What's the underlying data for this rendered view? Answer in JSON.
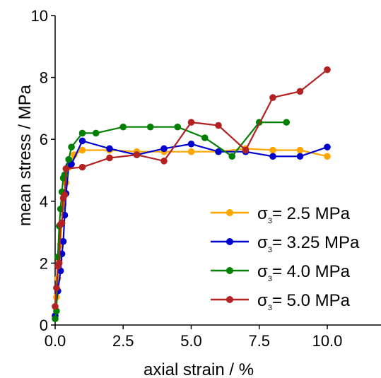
{
  "chart_data": {
    "type": "line",
    "xlabel": "axial strain / %",
    "ylabel": "mean stress / MPa",
    "xlim": [
      0,
      12
    ],
    "ylim": [
      0,
      10
    ],
    "xticks": [
      {
        "value": 0,
        "label": "0.0"
      },
      {
        "value": 2.5,
        "label": "2.5"
      },
      {
        "value": 5,
        "label": "5.0"
      },
      {
        "value": 7.5,
        "label": "7.5"
      },
      {
        "value": 10,
        "label": "10.0"
      }
    ],
    "yticks": [
      {
        "value": 0,
        "label": "0"
      },
      {
        "value": 2,
        "label": "2"
      },
      {
        "value": 4,
        "label": "4"
      },
      {
        "value": 6,
        "label": "6"
      },
      {
        "value": 8,
        "label": "8"
      },
      {
        "value": 10,
        "label": "10"
      }
    ],
    "grid": false,
    "legend_position": "bottom-right",
    "series": [
      {
        "name_main": "σ",
        "name_sub": "3",
        "name_rest": "= 2.5 MPa",
        "color": "#FFA500",
        "x": [
          0.0,
          0.05,
          0.1,
          0.15,
          0.2,
          0.25,
          0.3,
          0.4,
          0.5,
          0.7,
          1.0,
          2.0,
          3.0,
          4.0,
          5.0,
          6.0,
          7.0,
          8.0,
          9.0,
          10.0
        ],
        "y": [
          0.3,
          0.9,
          1.5,
          2.1,
          2.6,
          3.3,
          3.9,
          4.6,
          5.1,
          5.5,
          5.65,
          5.65,
          5.6,
          5.6,
          5.6,
          5.6,
          5.7,
          5.65,
          5.65,
          5.45
        ]
      },
      {
        "name_main": "σ",
        "name_sub": "3",
        "name_rest": "= 3.25 MPa",
        "color": "#0000CD",
        "x": [
          0.0,
          0.1,
          0.2,
          0.25,
          0.3,
          0.35,
          0.4,
          0.5,
          0.6,
          1.0,
          2.0,
          3.0,
          4.0,
          5.0,
          6.0,
          7.0,
          8.0,
          9.0,
          10.0
        ],
        "y": [
          0.3,
          1.1,
          1.75,
          2.3,
          2.7,
          3.55,
          4.25,
          5.15,
          5.2,
          5.95,
          5.7,
          5.5,
          5.7,
          5.85,
          5.6,
          5.6,
          5.45,
          5.45,
          5.75
        ]
      },
      {
        "name_main": "σ",
        "name_sub": "3",
        "name_rest": "= 4.0 MPa",
        "color": "#008000",
        "x": [
          0.0,
          0.05,
          0.1,
          0.15,
          0.2,
          0.25,
          0.3,
          0.35,
          0.4,
          0.5,
          0.6,
          1.0,
          1.5,
          2.5,
          3.5,
          4.5,
          5.5,
          6.5,
          7.5,
          8.5
        ],
        "y": [
          0.2,
          0.45,
          2.2,
          3.2,
          3.75,
          4.3,
          4.75,
          4.85,
          5.05,
          5.35,
          5.75,
          6.2,
          6.2,
          6.4,
          6.4,
          6.4,
          6.05,
          5.45,
          6.55,
          6.55
        ]
      },
      {
        "name_main": "σ",
        "name_sub": "3",
        "name_rest": "= 5.0 MPa",
        "color": "#B22222",
        "x": [
          0.0,
          0.05,
          0.1,
          0.15,
          0.2,
          0.25,
          0.3,
          0.35,
          0.4,
          1.0,
          2.0,
          3.0,
          4.0,
          5.0,
          6.0,
          7.0,
          8.0,
          9.0,
          10.0
        ],
        "y": [
          0.6,
          1.2,
          1.9,
          2.0,
          3.25,
          3.3,
          4.1,
          4.2,
          5.05,
          5.1,
          5.4,
          5.5,
          5.3,
          6.55,
          6.45,
          5.65,
          7.35,
          7.55,
          8.25
        ]
      }
    ]
  }
}
